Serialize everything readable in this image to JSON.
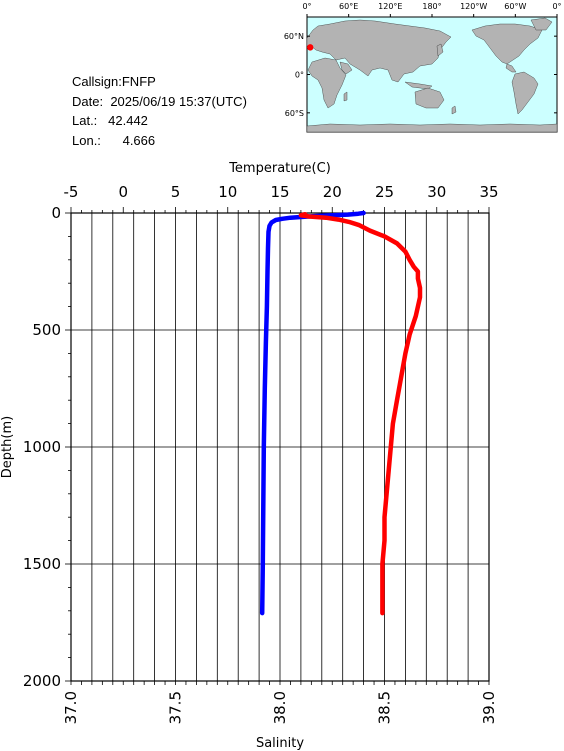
{
  "info": {
    "callsign_label": "Callsign:",
    "callsign": "FNFP",
    "date_label": "Date:",
    "date": "2025/06/19 15:37(UTC)",
    "lat_label": "Lat.:",
    "lat": "42.442",
    "lon_label": "Lon.:",
    "lon": "4.666"
  },
  "map": {
    "lon_labels": [
      "0°",
      "60°E",
      "120°E",
      "180°",
      "120°W",
      "60°W",
      "0°"
    ],
    "lat_labels": [
      "60°N",
      "0°",
      "60°S"
    ],
    "ocean_color": "#ccffff",
    "land_color": "#b3b3b3",
    "marker_color": "#ff0000",
    "station": {
      "lon": 4.666,
      "lat": 42.442
    }
  },
  "chart_data": {
    "type": "line",
    "top_axis": {
      "label": "Temperature(C)",
      "range": [
        -5,
        35
      ],
      "ticks": [
        "-5",
        "0",
        "5",
        "10",
        "15",
        "20",
        "25",
        "30",
        "35"
      ]
    },
    "bottom_axis": {
      "label": "Salinity",
      "range": [
        37.0,
        39.0
      ],
      "ticks": [
        "37.0",
        "37.5",
        "38.0",
        "38.5",
        "39.0"
      ]
    },
    "y_axis": {
      "label": "Depth(m)",
      "range": [
        0,
        2000
      ],
      "inverted": true,
      "ticks": [
        "0",
        "500",
        "1000",
        "1500",
        "2000"
      ]
    },
    "grid": true,
    "series": [
      {
        "quantity": "temperature",
        "axis": "top",
        "color": "#0000ff",
        "points": [
          [
            23.0,
            0
          ],
          [
            22.5,
            3
          ],
          [
            21.5,
            7
          ],
          [
            20.0,
            10
          ],
          [
            18.5,
            13
          ],
          [
            17.0,
            17
          ],
          [
            16.0,
            20
          ],
          [
            15.2,
            25
          ],
          [
            14.6,
            30
          ],
          [
            14.2,
            40
          ],
          [
            14.0,
            55
          ],
          [
            13.9,
            80
          ],
          [
            13.85,
            150
          ],
          [
            13.8,
            250
          ],
          [
            13.75,
            400
          ],
          [
            13.65,
            550
          ],
          [
            13.55,
            750
          ],
          [
            13.45,
            1000
          ],
          [
            13.4,
            1250
          ],
          [
            13.35,
            1500
          ],
          [
            13.3,
            1710
          ]
        ]
      },
      {
        "quantity": "salinity",
        "axis": "bottom",
        "color": "#ff0000",
        "points": [
          [
            38.12,
            5
          ],
          [
            38.1,
            10
          ],
          [
            38.14,
            15
          ],
          [
            38.22,
            20
          ],
          [
            38.28,
            28
          ],
          [
            38.33,
            38
          ],
          [
            38.38,
            52
          ],
          [
            38.43,
            75
          ],
          [
            38.5,
            100
          ],
          [
            38.56,
            130
          ],
          [
            38.6,
            165
          ],
          [
            38.62,
            200
          ],
          [
            38.64,
            230
          ],
          [
            38.66,
            250
          ],
          [
            38.66,
            280
          ],
          [
            38.67,
            320
          ],
          [
            38.67,
            360
          ],
          [
            38.66,
            400
          ],
          [
            38.65,
            440
          ],
          [
            38.62,
            520
          ],
          [
            38.6,
            600
          ],
          [
            38.58,
            700
          ],
          [
            38.56,
            800
          ],
          [
            38.54,
            900
          ],
          [
            38.53,
            1000
          ],
          [
            38.52,
            1100
          ],
          [
            38.51,
            1200
          ],
          [
            38.5,
            1300
          ],
          [
            38.5,
            1400
          ],
          [
            38.49,
            1500
          ],
          [
            38.49,
            1600
          ],
          [
            38.49,
            1710
          ]
        ]
      }
    ]
  }
}
